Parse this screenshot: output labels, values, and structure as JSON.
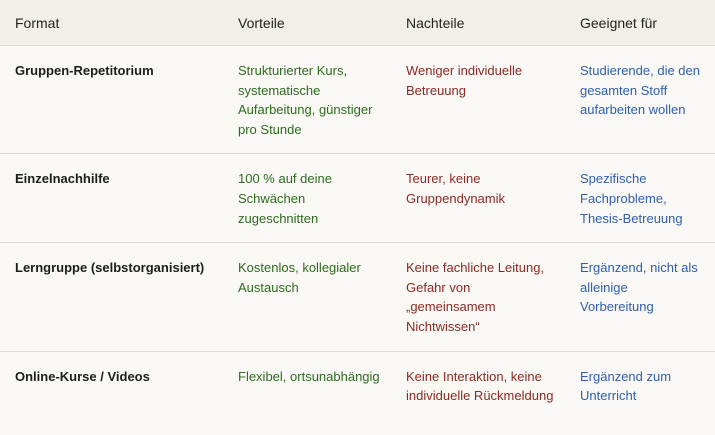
{
  "headers": [
    "Format",
    "Vorteile",
    "Nachteile",
    "Geeignet für"
  ],
  "colors": {
    "vorteile": "#2e6b1f",
    "nachteile": "#8a2a24",
    "geeignet": "#2f5fae",
    "header_bg": "#f1efe9",
    "body_bg": "#f9f8f5"
  },
  "rows": [
    {
      "format": "Gruppen-Repetitorium",
      "vorteile": "Strukturierter Kurs, systematische Aufarbeitung, günstiger pro Stunde",
      "nachteile": "Weniger individuelle Betreuung",
      "geeignet": "Studierende, die den gesamten Stoff aufarbeiten wollen"
    },
    {
      "format": "Einzelnachhilfe",
      "vorteile": "100 % auf deine Schwächen zugeschnitten",
      "nachteile": "Teurer, keine Gruppendynamik",
      "geeignet": "Spezifische Fachprobleme, Thesis-Betreuung"
    },
    {
      "format": "Lerngruppe (selbstorganisiert)",
      "vorteile": "Kostenlos, kollegialer Austausch",
      "nachteile": "Keine fachliche Leitung, Gefahr von „gemeinsamem Nichtwissen“",
      "geeignet": "Ergänzend, nicht als alleinige Vorbereitung"
    },
    {
      "format": "Online-Kurse / Videos",
      "vorteile": "Flexibel, ortsunabhängig",
      "nachteile": "Keine Interaktion, keine individuelle Rückmeldung",
      "geeignet": "Ergänzend zum Unterricht"
    }
  ]
}
